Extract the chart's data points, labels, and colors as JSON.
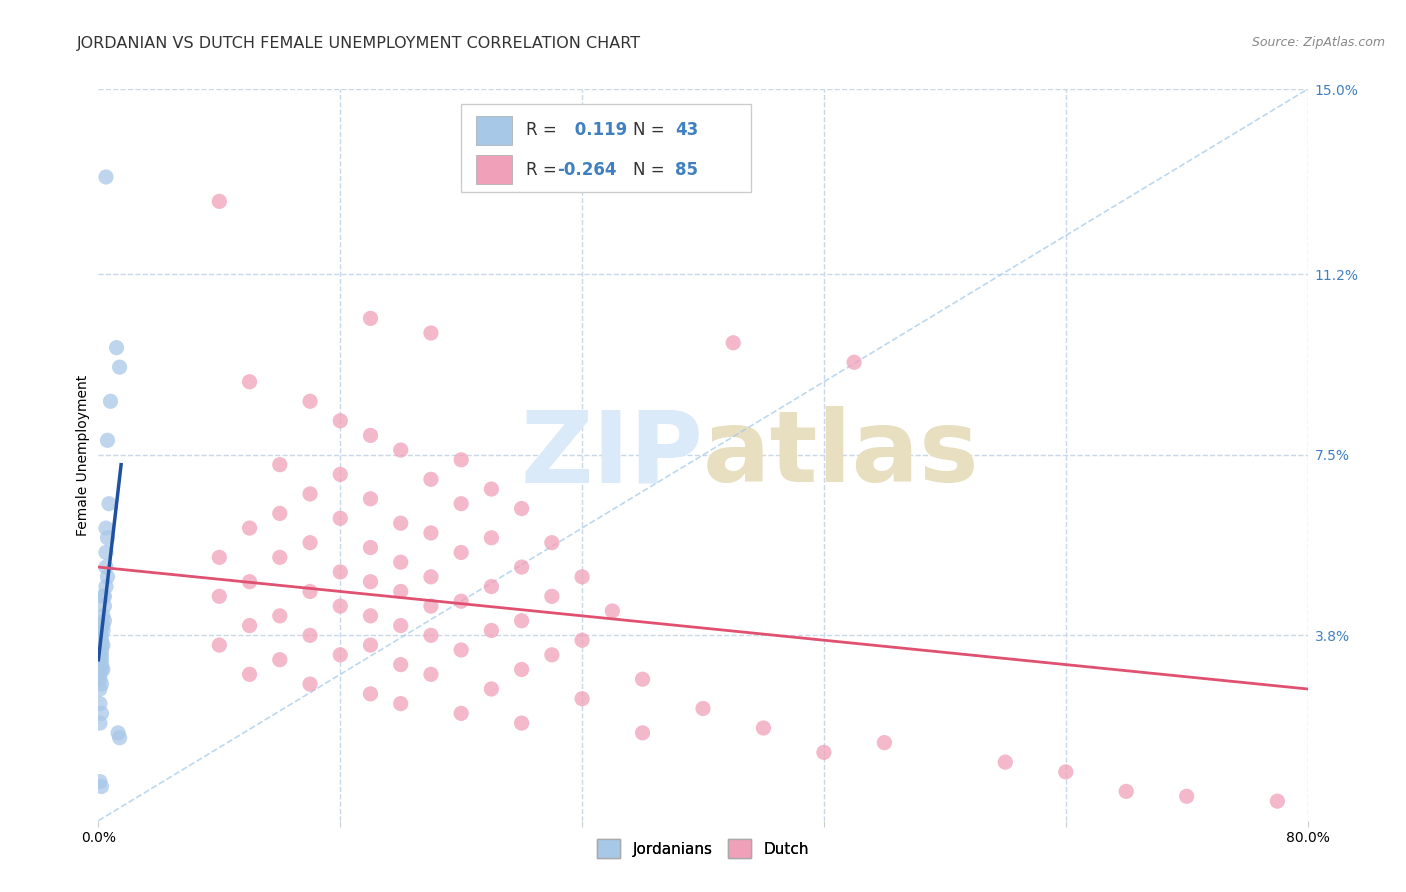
{
  "title": "JORDANIAN VS DUTCH FEMALE UNEMPLOYMENT CORRELATION CHART",
  "source": "Source: ZipAtlas.com",
  "ylabel": "Female Unemployment",
  "xlim": [
    0.0,
    0.8
  ],
  "ylim": [
    0.0,
    0.15
  ],
  "yticks": [
    0.038,
    0.075,
    0.112,
    0.15
  ],
  "ytick_labels": [
    "3.8%",
    "7.5%",
    "11.2%",
    "15.0%"
  ],
  "xticks": [
    0.0,
    0.16,
    0.32,
    0.48,
    0.64,
    0.8
  ],
  "xtick_labels": [
    "0.0%",
    "",
    "",
    "",
    "",
    "80.0%"
  ],
  "blue_color": "#a8c8e8",
  "pink_color": "#f0a0b8",
  "line_blue_solid": "#2050a0",
  "line_pink_solid": "#e05070",
  "line_dashed_color": "#a0c8e8",
  "watermark_zip_color": "#daeaf8",
  "watermark_atlas_color": "#e8dfc0",
  "jordanian_points": [
    [
      0.005,
      0.132
    ],
    [
      0.012,
      0.097
    ],
    [
      0.014,
      0.093
    ],
    [
      0.008,
      0.086
    ],
    [
      0.006,
      0.078
    ],
    [
      0.007,
      0.065
    ],
    [
      0.005,
      0.06
    ],
    [
      0.006,
      0.058
    ],
    [
      0.005,
      0.055
    ],
    [
      0.005,
      0.052
    ],
    [
      0.006,
      0.05
    ],
    [
      0.005,
      0.048
    ],
    [
      0.003,
      0.046
    ],
    [
      0.004,
      0.046
    ],
    [
      0.004,
      0.044
    ],
    [
      0.003,
      0.042
    ],
    [
      0.004,
      0.041
    ],
    [
      0.003,
      0.04
    ],
    [
      0.002,
      0.04
    ],
    [
      0.003,
      0.039
    ],
    [
      0.002,
      0.038
    ],
    [
      0.002,
      0.037
    ],
    [
      0.003,
      0.036
    ],
    [
      0.002,
      0.036
    ],
    [
      0.002,
      0.035
    ],
    [
      0.002,
      0.034
    ],
    [
      0.001,
      0.034
    ],
    [
      0.002,
      0.033
    ],
    [
      0.001,
      0.032
    ],
    [
      0.002,
      0.032
    ],
    [
      0.003,
      0.031
    ],
    [
      0.002,
      0.031
    ],
    [
      0.001,
      0.03
    ],
    [
      0.001,
      0.029
    ],
    [
      0.002,
      0.028
    ],
    [
      0.001,
      0.027
    ],
    [
      0.001,
      0.024
    ],
    [
      0.002,
      0.022
    ],
    [
      0.001,
      0.02
    ],
    [
      0.013,
      0.018
    ],
    [
      0.014,
      0.017
    ],
    [
      0.001,
      0.008
    ],
    [
      0.002,
      0.007
    ]
  ],
  "dutch_points": [
    [
      0.08,
      0.127
    ],
    [
      0.18,
      0.103
    ],
    [
      0.22,
      0.1
    ],
    [
      0.42,
      0.098
    ],
    [
      0.5,
      0.094
    ],
    [
      0.1,
      0.09
    ],
    [
      0.14,
      0.086
    ],
    [
      0.16,
      0.082
    ],
    [
      0.18,
      0.079
    ],
    [
      0.2,
      0.076
    ],
    [
      0.24,
      0.074
    ],
    [
      0.12,
      0.073
    ],
    [
      0.16,
      0.071
    ],
    [
      0.22,
      0.07
    ],
    [
      0.26,
      0.068
    ],
    [
      0.14,
      0.067
    ],
    [
      0.18,
      0.066
    ],
    [
      0.24,
      0.065
    ],
    [
      0.28,
      0.064
    ],
    [
      0.12,
      0.063
    ],
    [
      0.16,
      0.062
    ],
    [
      0.2,
      0.061
    ],
    [
      0.1,
      0.06
    ],
    [
      0.22,
      0.059
    ],
    [
      0.26,
      0.058
    ],
    [
      0.3,
      0.057
    ],
    [
      0.14,
      0.057
    ],
    [
      0.18,
      0.056
    ],
    [
      0.24,
      0.055
    ],
    [
      0.08,
      0.054
    ],
    [
      0.12,
      0.054
    ],
    [
      0.2,
      0.053
    ],
    [
      0.28,
      0.052
    ],
    [
      0.16,
      0.051
    ],
    [
      0.22,
      0.05
    ],
    [
      0.32,
      0.05
    ],
    [
      0.1,
      0.049
    ],
    [
      0.18,
      0.049
    ],
    [
      0.26,
      0.048
    ],
    [
      0.14,
      0.047
    ],
    [
      0.2,
      0.047
    ],
    [
      0.3,
      0.046
    ],
    [
      0.08,
      0.046
    ],
    [
      0.24,
      0.045
    ],
    [
      0.16,
      0.044
    ],
    [
      0.22,
      0.044
    ],
    [
      0.34,
      0.043
    ],
    [
      0.12,
      0.042
    ],
    [
      0.18,
      0.042
    ],
    [
      0.28,
      0.041
    ],
    [
      0.1,
      0.04
    ],
    [
      0.2,
      0.04
    ],
    [
      0.26,
      0.039
    ],
    [
      0.14,
      0.038
    ],
    [
      0.22,
      0.038
    ],
    [
      0.32,
      0.037
    ],
    [
      0.08,
      0.036
    ],
    [
      0.18,
      0.036
    ],
    [
      0.24,
      0.035
    ],
    [
      0.3,
      0.034
    ],
    [
      0.16,
      0.034
    ],
    [
      0.12,
      0.033
    ],
    [
      0.2,
      0.032
    ],
    [
      0.28,
      0.031
    ],
    [
      0.1,
      0.03
    ],
    [
      0.22,
      0.03
    ],
    [
      0.36,
      0.029
    ],
    [
      0.14,
      0.028
    ],
    [
      0.26,
      0.027
    ],
    [
      0.18,
      0.026
    ],
    [
      0.32,
      0.025
    ],
    [
      0.2,
      0.024
    ],
    [
      0.4,
      0.023
    ],
    [
      0.24,
      0.022
    ],
    [
      0.28,
      0.02
    ],
    [
      0.44,
      0.019
    ],
    [
      0.36,
      0.018
    ],
    [
      0.52,
      0.016
    ],
    [
      0.48,
      0.014
    ],
    [
      0.6,
      0.012
    ],
    [
      0.64,
      0.01
    ],
    [
      0.68,
      0.006
    ],
    [
      0.72,
      0.005
    ],
    [
      0.78,
      0.004
    ]
  ],
  "background_color": "#ffffff",
  "grid_color": "#c8d8e8",
  "title_fontsize": 11.5,
  "axis_label_fontsize": 10,
  "tick_fontsize": 10,
  "legend_fontsize": 12,
  "blue_line_x": [
    0.0,
    0.015
  ],
  "blue_line_y": [
    0.033,
    0.073
  ],
  "pink_line_x": [
    0.0,
    0.8
  ],
  "pink_line_y": [
    0.052,
    0.027
  ]
}
